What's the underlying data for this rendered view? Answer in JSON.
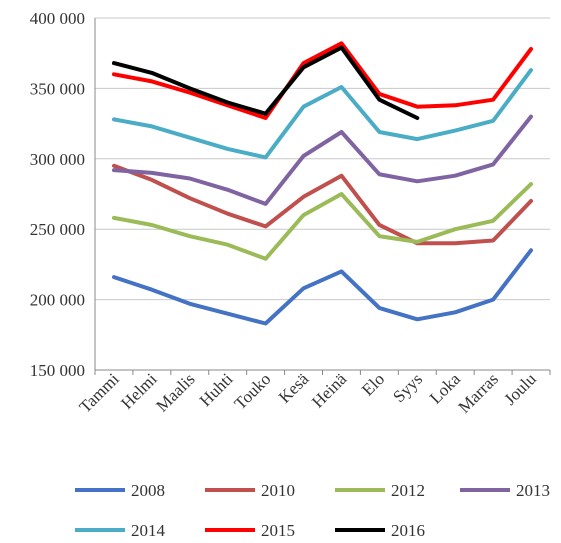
{
  "chart_data": {
    "type": "line",
    "title": "",
    "xlabel": "",
    "ylabel": "",
    "categories": [
      "Tammi",
      "Helmi",
      "Maalis",
      "Huhti",
      "Touko",
      "Kesä",
      "Heinä",
      "Elo",
      "Syys",
      "Loka",
      "Marras",
      "Joulu"
    ],
    "ylim": [
      150000,
      400000
    ],
    "yticks": [
      150000,
      200000,
      250000,
      300000,
      350000,
      400000
    ],
    "ytick_labels": [
      "150 000",
      "200 000",
      "250 000",
      "300 000",
      "350 000",
      "400 000"
    ],
    "grid": true,
    "legend_position": "bottom",
    "series": [
      {
        "name": "2008",
        "color": "#4472C4",
        "values": [
          216000,
          207000,
          197000,
          190000,
          183000,
          208000,
          220000,
          194000,
          186000,
          191000,
          200000,
          235000
        ]
      },
      {
        "name": "2010",
        "color": "#C0504D",
        "values": [
          295000,
          285000,
          272000,
          261000,
          252000,
          273000,
          288000,
          253000,
          240000,
          240000,
          242000,
          270000
        ]
      },
      {
        "name": "2012",
        "color": "#9BBB59",
        "values": [
          258000,
          253000,
          245000,
          239000,
          229000,
          260000,
          275000,
          245000,
          241000,
          250000,
          256000,
          282000
        ]
      },
      {
        "name": "2013",
        "color": "#8064A2",
        "values": [
          292000,
          290000,
          286000,
          278000,
          268000,
          302000,
          319000,
          289000,
          284000,
          288000,
          296000,
          330000
        ]
      },
      {
        "name": "2014",
        "color": "#4BACC6",
        "values": [
          328000,
          323000,
          315000,
          307000,
          301000,
          337000,
          351000,
          319000,
          314000,
          320000,
          327000,
          363000
        ]
      },
      {
        "name": "2015",
        "color": "#FF0000",
        "values": [
          360000,
          355000,
          347000,
          338000,
          329000,
          368000,
          382000,
          346000,
          337000,
          338000,
          342000,
          378000
        ]
      },
      {
        "name": "2016",
        "color": "#000000",
        "values": [
          368000,
          361000,
          350000,
          340000,
          332000,
          365000,
          379000,
          342000,
          329000,
          null,
          null,
          null
        ]
      }
    ]
  }
}
